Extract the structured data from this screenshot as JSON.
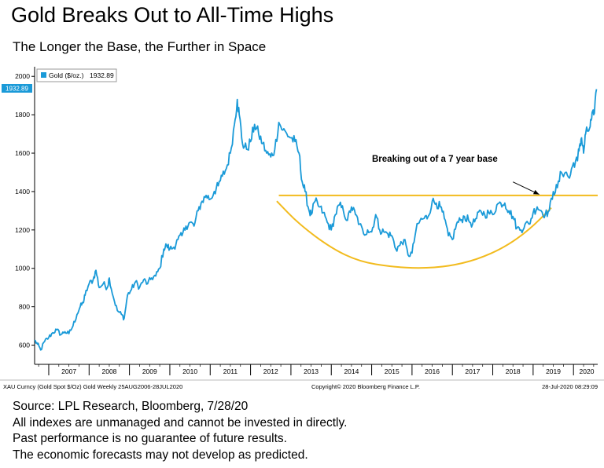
{
  "header": {
    "title": "Gold Breaks Out to All-Time Highs",
    "subtitle": "The Longer the Base, the Further in Space"
  },
  "legend": {
    "label": "Gold ($/oz.)",
    "value": "1932.89"
  },
  "last_value_tag": "1932.89",
  "annotation": "Breaking out of a 7 year base",
  "bottom_bar": {
    "left": "XAU Curncy (Gold Spot  $/Oz) Gold  Weekly 25AUG2006-28JUL2020",
    "center": "Copyright© 2020 Bloomberg Finance L.P.",
    "right": "28-Jul-2020 08:29:09"
  },
  "footer": [
    "Source: LPL Research, Bloomberg, 7/28/20",
    "All indexes are unmanaged and cannot be invested in directly.",
    "Past performance is no guarantee of future results.",
    "The economic forecasts may not develop as predicted."
  ],
  "colors": {
    "line": "#1a9ad8",
    "base_line": "#f2bb1e",
    "tag_bg": "#1a9ad8",
    "axis": "#000000"
  },
  "chart_data": {
    "type": "line",
    "title": "Gold Breaks Out to All-Time Highs",
    "subtitle": "The Longer the Base, the Further in Space",
    "xlabel": "",
    "ylabel": "",
    "xlim": [
      2006.65,
      2020.6
    ],
    "ylim": [
      500,
      2050
    ],
    "y_ticks": [
      600,
      800,
      1000,
      1200,
      1400,
      1600,
      1800,
      2000
    ],
    "x_tick_labels": [
      "2007",
      "2008",
      "2009",
      "2010",
      "2011",
      "2012",
      "2013",
      "2014",
      "2015",
      "2016",
      "2017",
      "2018",
      "2019",
      "2020"
    ],
    "grid": false,
    "legend_position": "top-left",
    "series": [
      {
        "name": "Gold ($/oz.)",
        "x": [
          2006.65,
          2006.72,
          2006.8,
          2006.9,
          2007.0,
          2007.1,
          2007.2,
          2007.3,
          2007.4,
          2007.5,
          2007.6,
          2007.7,
          2007.78,
          2007.85,
          2007.9,
          2008.0,
          2008.1,
          2008.17,
          2008.25,
          2008.35,
          2008.45,
          2008.5,
          2008.6,
          2008.7,
          2008.8,
          2008.87,
          2008.95,
          2009.05,
          2009.15,
          2009.25,
          2009.35,
          2009.45,
          2009.55,
          2009.65,
          2009.75,
          2009.85,
          2009.92,
          2010.0,
          2010.1,
          2010.2,
          2010.3,
          2010.4,
          2010.5,
          2010.6,
          2010.7,
          2010.8,
          2010.9,
          2011.0,
          2011.1,
          2011.2,
          2011.3,
          2011.4,
          2011.5,
          2011.6,
          2011.67,
          2011.72,
          2011.8,
          2011.9,
          2012.0,
          2012.1,
          2012.2,
          2012.3,
          2012.4,
          2012.5,
          2012.6,
          2012.7,
          2012.8,
          2012.9,
          2013.0,
          2013.1,
          2013.2,
          2013.28,
          2013.35,
          2013.45,
          2013.5,
          2013.6,
          2013.7,
          2013.8,
          2013.9,
          2014.0,
          2014.1,
          2014.2,
          2014.3,
          2014.4,
          2014.5,
          2014.6,
          2014.7,
          2014.8,
          2014.9,
          2015.0,
          2015.1,
          2015.2,
          2015.3,
          2015.4,
          2015.5,
          2015.6,
          2015.7,
          2015.8,
          2015.9,
          2016.0,
          2016.1,
          2016.2,
          2016.3,
          2016.4,
          2016.5,
          2016.6,
          2016.7,
          2016.8,
          2016.9,
          2017.0,
          2017.1,
          2017.2,
          2017.3,
          2017.4,
          2017.5,
          2017.6,
          2017.7,
          2017.8,
          2017.9,
          2018.0,
          2018.1,
          2018.2,
          2018.3,
          2018.4,
          2018.5,
          2018.6,
          2018.7,
          2018.8,
          2018.9,
          2019.0,
          2019.1,
          2019.2,
          2019.3,
          2019.4,
          2019.5,
          2019.6,
          2019.7,
          2019.8,
          2019.9,
          2020.0,
          2020.1,
          2020.15,
          2020.2,
          2020.25,
          2020.3,
          2020.4,
          2020.45,
          2020.5,
          2020.57
        ],
        "values": [
          625,
          605,
          575,
          620,
          640,
          665,
          680,
          655,
          670,
          660,
          700,
          760,
          800,
          820,
          860,
          920,
          940,
          990,
          900,
          920,
          900,
          950,
          850,
          780,
          760,
          740,
          860,
          890,
          930,
          900,
          940,
          920,
          950,
          960,
          1000,
          1100,
          1120,
          1100,
          1110,
          1150,
          1170,
          1220,
          1240,
          1220,
          1300,
          1350,
          1380,
          1360,
          1400,
          1430,
          1480,
          1520,
          1600,
          1750,
          1880,
          1800,
          1650,
          1620,
          1660,
          1750,
          1700,
          1650,
          1600,
          1580,
          1620,
          1760,
          1720,
          1700,
          1680,
          1660,
          1600,
          1450,
          1400,
          1300,
          1280,
          1350,
          1320,
          1290,
          1240,
          1200,
          1280,
          1330,
          1300,
          1250,
          1320,
          1280,
          1230,
          1180,
          1200,
          1190,
          1280,
          1200,
          1190,
          1180,
          1170,
          1100,
          1120,
          1150,
          1070,
          1080,
          1200,
          1250,
          1260,
          1270,
          1350,
          1340,
          1320,
          1260,
          1170,
          1150,
          1230,
          1250,
          1270,
          1250,
          1230,
          1260,
          1300,
          1280,
          1290,
          1280,
          1330,
          1340,
          1340,
          1300,
          1270,
          1210,
          1200,
          1230,
          1230,
          1290,
          1320,
          1300,
          1280,
          1300,
          1400,
          1420,
          1500,
          1500,
          1470,
          1550,
          1560,
          1640,
          1680,
          1600,
          1700,
          1730,
          1780,
          1800,
          1932.89
        ]
      }
    ],
    "overlays": [
      {
        "kind": "horizontal_line",
        "label": "base level",
        "y": 1380,
        "x_from": 2012.7,
        "x_to": 2020.6
      },
      {
        "kind": "curve",
        "label": "base arc",
        "points": [
          [
            2012.65,
            1350
          ],
          [
            2013.2,
            1230
          ],
          [
            2014.0,
            1105
          ],
          [
            2014.7,
            1035
          ],
          [
            2015.5,
            1008
          ],
          [
            2016.2,
            1000
          ],
          [
            2016.9,
            1010
          ],
          [
            2017.6,
            1045
          ],
          [
            2018.3,
            1110
          ],
          [
            2018.9,
            1200
          ],
          [
            2019.45,
            1315
          ]
        ]
      },
      {
        "kind": "arrow",
        "label": "Breaking out of a 7 year base",
        "from": [
          2018.5,
          1450
        ],
        "to": [
          2019.15,
          1385
        ]
      }
    ]
  }
}
